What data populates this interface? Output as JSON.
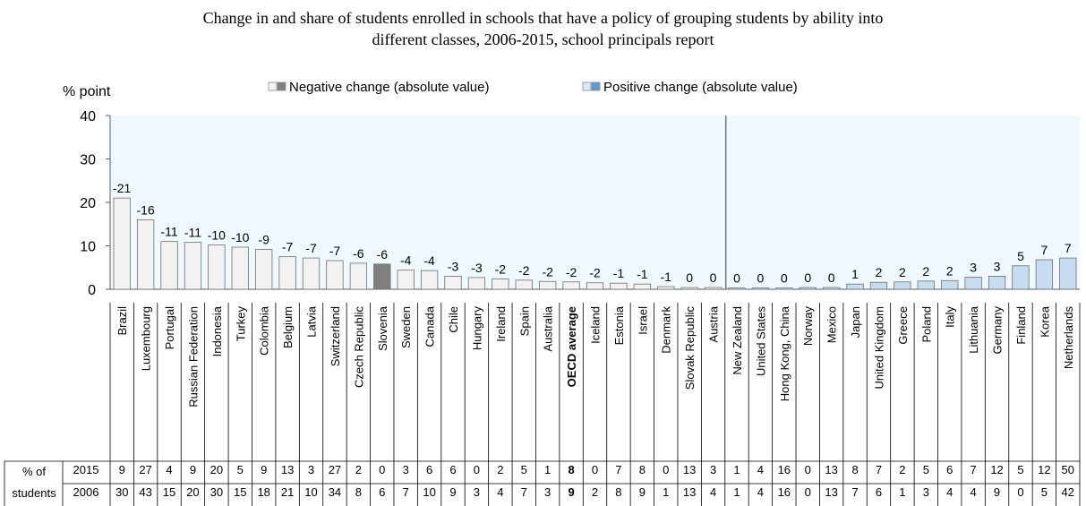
{
  "chart_data": {
    "type": "bar",
    "title_lines": [
      "Change in and share of students enrolled in schools that have a policy of grouping students by ability into",
      "different classes, 2006-2015, school principals report"
    ],
    "ylabel": "% point",
    "ylim": [
      0,
      40
    ],
    "yticks": [
      0,
      10,
      20,
      30,
      40
    ],
    "legend": [
      {
        "label": "Negative change (absolute value)",
        "colors": [
          "#f2f2f2",
          "#7f7f7f"
        ]
      },
      {
        "label": "Positive change (absolute value)",
        "colors": [
          "#dbe9f6",
          "#5b9bd5"
        ]
      }
    ],
    "colors": {
      "negative_fill": "#f2f2f2",
      "negative_highlight": "#7f7f7f",
      "positive_fill": "#c5dcf1",
      "plot_bg_positive": "#f0f9ff",
      "bar_stroke": "#6f6f6f",
      "axis": "#595959"
    },
    "highlight": "Slovenia",
    "bold_category": "OECD average",
    "table_row_header": [
      "% of",
      "students"
    ],
    "table_years": [
      "2015",
      "2006"
    ],
    "categories": [
      {
        "name": "Brazil",
        "change": -21,
        "bar": 21,
        "y2015": "9",
        "y2006": "30"
      },
      {
        "name": "Luxembourg",
        "change": -16,
        "bar": 16,
        "y2015": "27",
        "y2006": "43"
      },
      {
        "name": "Portugal",
        "change": -11,
        "bar": 11,
        "y2015": "4",
        "y2006": "15"
      },
      {
        "name": "Russian Federation",
        "change": -11,
        "bar": 10.8,
        "y2015": "9",
        "y2006": "20"
      },
      {
        "name": "Indonesia",
        "change": -10,
        "bar": 10.2,
        "y2015": "20",
        "y2006": "30"
      },
      {
        "name": "Turkey",
        "change": -10,
        "bar": 9.7,
        "y2015": "5",
        "y2006": "15"
      },
      {
        "name": "Colombia",
        "change": -9,
        "bar": 9.2,
        "y2015": "9",
        "y2006": "18"
      },
      {
        "name": "Belgium",
        "change": -7,
        "bar": 7.5,
        "y2015": "13",
        "y2006": "21"
      },
      {
        "name": "Latvia",
        "change": -7,
        "bar": 7.2,
        "y2015": "3",
        "y2006": "10"
      },
      {
        "name": "Switzerland",
        "change": -7,
        "bar": 6.6,
        "y2015": "27",
        "y2006": "34"
      },
      {
        "name": "Czech Republic",
        "change": -6,
        "bar": 6.0,
        "y2015": "2",
        "y2006": "8"
      },
      {
        "name": "Slovenia",
        "change": -6,
        "bar": 5.8,
        "y2015": "0",
        "y2006": "6"
      },
      {
        "name": "Sweden",
        "change": -4,
        "bar": 4.4,
        "y2015": "3",
        "y2006": "7"
      },
      {
        "name": "Canada",
        "change": -4,
        "bar": 4.3,
        "y2015": "6",
        "y2006": "10"
      },
      {
        "name": "Chile",
        "change": -3,
        "bar": 3.0,
        "y2015": "6",
        "y2006": "9"
      },
      {
        "name": "Hungary",
        "change": -3,
        "bar": 2.7,
        "y2015": "0",
        "y2006": "3"
      },
      {
        "name": "Ireland",
        "change": -2,
        "bar": 2.4,
        "y2015": "2",
        "y2006": "4"
      },
      {
        "name": "Spain",
        "change": -2,
        "bar": 2.1,
        "y2015": "5",
        "y2006": "7"
      },
      {
        "name": "Australia",
        "change": -2,
        "bar": 1.8,
        "y2015": "1",
        "y2006": "3"
      },
      {
        "name": "OECD average",
        "change": -2,
        "bar": 1.7,
        "y2015": "8",
        "y2006": "9"
      },
      {
        "name": "Iceland",
        "change": -2,
        "bar": 1.5,
        "y2015": "0",
        "y2006": "2"
      },
      {
        "name": "Estonia",
        "change": -1,
        "bar": 1.4,
        "y2015": "7",
        "y2006": "8"
      },
      {
        "name": "Israel",
        "change": -1,
        "bar": 1.2,
        "y2015": "8",
        "y2006": "9"
      },
      {
        "name": "Denmark",
        "change": -1,
        "bar": 0.6,
        "y2015": "0",
        "y2006": "1"
      },
      {
        "name": "Slovak Republic",
        "change": 0,
        "bar": 0.4,
        "y2015": "13",
        "y2006": "13"
      },
      {
        "name": "Austria",
        "change": 0,
        "bar": 0.4,
        "y2015": "3",
        "y2006": "4"
      },
      {
        "name": "New Zealand",
        "change": 0,
        "bar": 0.3,
        "y2015": "1",
        "y2006": "1"
      },
      {
        "name": "United States",
        "change": 0,
        "bar": 0.3,
        "y2015": "4",
        "y2006": "4"
      },
      {
        "name": "Hong Kong, China",
        "change": 0,
        "bar": 0.3,
        "y2015": "16",
        "y2006": "16"
      },
      {
        "name": "Norway",
        "change": 0,
        "bar": 0.4,
        "y2015": "0",
        "y2006": "0"
      },
      {
        "name": "Mexico",
        "change": 0,
        "bar": 0.4,
        "y2015": "13",
        "y2006": "13"
      },
      {
        "name": "Japan",
        "change": 1,
        "bar": 1.2,
        "y2015": "8",
        "y2006": "7"
      },
      {
        "name": "United Kingdom",
        "change": 2,
        "bar": 1.6,
        "y2015": "7",
        "y2006": "6"
      },
      {
        "name": "Greece",
        "change": 2,
        "bar": 1.7,
        "y2015": "2",
        "y2006": "1"
      },
      {
        "name": "Poland",
        "change": 2,
        "bar": 1.9,
        "y2015": "5",
        "y2006": "3"
      },
      {
        "name": "Italy",
        "change": 2,
        "bar": 2.0,
        "y2015": "6",
        "y2006": "4"
      },
      {
        "name": "Lithuania",
        "change": 3,
        "bar": 2.8,
        "y2015": "7",
        "y2006": "4"
      },
      {
        "name": "Germany",
        "change": 3,
        "bar": 3.0,
        "y2015": "12",
        "y2006": "9"
      },
      {
        "name": "Finland",
        "change": 5,
        "bar": 5.4,
        "y2015": "5",
        "y2006": "0"
      },
      {
        "name": "Korea",
        "change": 7,
        "bar": 6.8,
        "y2015": "12",
        "y2006": "5"
      },
      {
        "name": "Netherlands",
        "change": 7,
        "bar": 7.2,
        "y2015": "50",
        "y2006": "42"
      }
    ],
    "bar_label_text": [
      "-21",
      "-16",
      "-11",
      "-11",
      "-10",
      "-10",
      "-9",
      "-7",
      "-7",
      "-7",
      "-6",
      "-6",
      "-4",
      "-4",
      "-3",
      "-3",
      "-2",
      "-2",
      "-2",
      "-2",
      "-2",
      "-1",
      "-1",
      "-1",
      "0",
      "0",
      "0",
      "0",
      "0",
      "0",
      "0",
      "1",
      "2",
      "2",
      "2",
      "2",
      "3",
      "3",
      "5",
      "7",
      "7"
    ]
  }
}
